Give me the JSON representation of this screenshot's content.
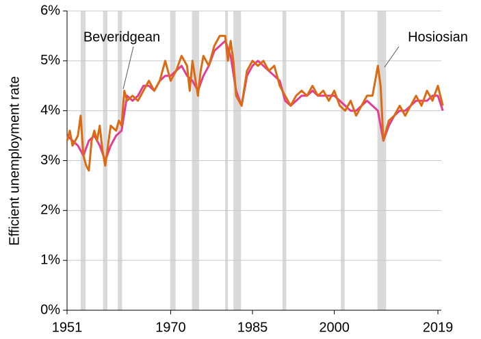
{
  "chart_data": {
    "type": "line",
    "y_label": "Efficient unemployment rate",
    "xlim": [
      1951,
      2020
    ],
    "xticks": [
      1951,
      1970,
      1985,
      2000,
      2019
    ],
    "ylim": [
      0,
      6
    ],
    "yticks": [
      {
        "value": 0,
        "label": "0%"
      },
      {
        "value": 1,
        "label": "1%"
      },
      {
        "value": 2,
        "label": "2%"
      },
      {
        "value": 3,
        "label": "3%"
      },
      {
        "value": 4,
        "label": "4%"
      },
      {
        "value": 5,
        "label": "5%"
      },
      {
        "value": 6,
        "label": "6%"
      }
    ],
    "grid": true,
    "recessions": [
      [
        1953.5,
        1954.4
      ],
      [
        1957.6,
        1958.4
      ],
      [
        1960.3,
        1961.1
      ],
      [
        1969.9,
        1970.9
      ],
      [
        1973.9,
        1975.2
      ],
      [
        1980.0,
        1980.5
      ],
      [
        1981.5,
        1982.9
      ],
      [
        1990.5,
        1991.2
      ],
      [
        2001.2,
        2001.9
      ],
      [
        2007.9,
        2009.5
      ]
    ],
    "recession_color": "#d9d9d9",
    "series": [
      {
        "name": "Beveridgean",
        "color": "#e43c96",
        "x": [
          1951,
          1952,
          1953,
          1954,
          1955,
          1956,
          1957,
          1958,
          1959,
          1960,
          1961,
          1962,
          1963,
          1964,
          1965,
          1966,
          1967,
          1968,
          1969,
          1970,
          1971,
          1972,
          1973,
          1974,
          1975,
          1976,
          1977,
          1978,
          1979,
          1980,
          1981,
          1982,
          1983,
          1984,
          1985,
          1986,
          1987,
          1988,
          1989,
          1990,
          1991,
          1992,
          1993,
          1994,
          1995,
          1996,
          1997,
          1998,
          1999,
          2000,
          2001,
          2002,
          2003,
          2004,
          2005,
          2006,
          2007,
          2008,
          2009,
          2010,
          2011,
          2012,
          2013,
          2014,
          2015,
          2016,
          2017,
          2018,
          2019,
          2019.9
        ],
        "values": [
          3.5,
          3.4,
          3.3,
          3.1,
          3.4,
          3.5,
          3.3,
          3.0,
          3.3,
          3.5,
          3.6,
          4.3,
          4.2,
          4.3,
          4.5,
          4.5,
          4.4,
          4.6,
          4.7,
          4.7,
          4.8,
          4.9,
          4.7,
          4.6,
          4.4,
          4.7,
          4.9,
          5.2,
          5.3,
          5.4,
          5.1,
          4.4,
          4.1,
          4.7,
          4.9,
          5.0,
          4.9,
          4.8,
          4.7,
          4.6,
          4.2,
          4.1,
          4.2,
          4.3,
          4.3,
          4.4,
          4.3,
          4.3,
          4.3,
          4.3,
          4.2,
          4.1,
          4.0,
          4.0,
          4.1,
          4.2,
          4.1,
          4.0,
          3.4,
          3.7,
          3.9,
          4.0,
          4.0,
          4.1,
          4.2,
          4.2,
          4.2,
          4.3,
          4.3,
          4.0
        ]
      },
      {
        "name": "Hosiosian",
        "color": "#dc6a10",
        "x": [
          1951,
          1951.5,
          1952,
          1953,
          1953.5,
          1954,
          1954.5,
          1955,
          1955.5,
          1956,
          1956.5,
          1957,
          1957.5,
          1958,
          1958.5,
          1959,
          1960,
          1960.5,
          1961,
          1961.5,
          1962,
          1963,
          1964,
          1965,
          1966,
          1967,
          1968,
          1969,
          1970,
          1971,
          1972,
          1973,
          1973.5,
          1974,
          1975,
          1975.5,
          1976,
          1977,
          1978,
          1979,
          1980,
          1980.5,
          1981,
          1981.5,
          1982,
          1983,
          1984,
          1985,
          1986,
          1987,
          1988,
          1989,
          1990,
          1991,
          1992,
          1993,
          1994,
          1995,
          1996,
          1997,
          1998,
          1999,
          2000,
          2001,
          2002,
          2003,
          2004,
          2005,
          2006,
          2007,
          2007.5,
          2008,
          2008.5,
          2009,
          2010,
          2011,
          2012,
          2013,
          2014,
          2015,
          2016,
          2017,
          2018,
          2019,
          2019.9
        ],
        "values": [
          3.4,
          3.6,
          3.3,
          3.5,
          3.9,
          3.1,
          2.9,
          2.8,
          3.4,
          3.6,
          3.4,
          3.7,
          3.2,
          2.9,
          3.3,
          3.7,
          3.6,
          3.8,
          3.7,
          4.4,
          4.2,
          4.3,
          4.2,
          4.4,
          4.6,
          4.4,
          4.6,
          5.0,
          4.6,
          4.8,
          5.1,
          4.9,
          4.4,
          5.0,
          4.3,
          4.8,
          5.1,
          4.9,
          5.3,
          5.5,
          5.5,
          5.0,
          5.4,
          5.0,
          4.3,
          4.1,
          4.8,
          5.0,
          4.9,
          5.0,
          4.8,
          4.9,
          4.5,
          4.3,
          4.1,
          4.3,
          4.4,
          4.3,
          4.5,
          4.3,
          4.4,
          4.2,
          4.4,
          4.1,
          4.0,
          4.2,
          3.9,
          4.1,
          4.3,
          4.3,
          4.6,
          4.9,
          4.5,
          3.4,
          3.8,
          3.9,
          4.1,
          3.9,
          4.1,
          4.3,
          4.1,
          4.4,
          4.2,
          4.5,
          4.1
        ]
      }
    ]
  }
}
